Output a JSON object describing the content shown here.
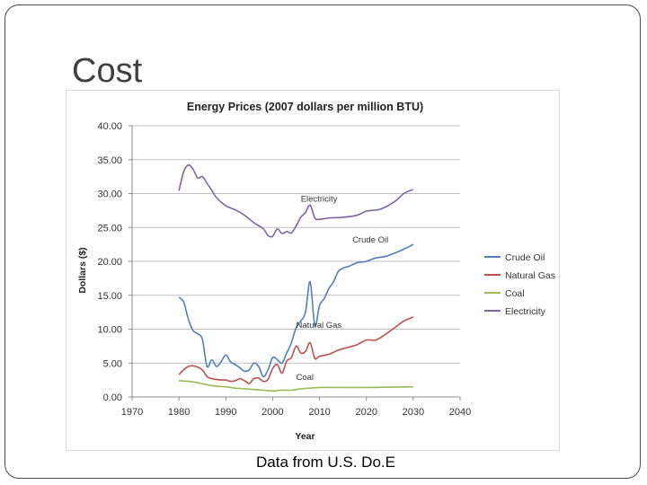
{
  "slide": {
    "title": "Cost",
    "caption": "Data from U.S. Do.E"
  },
  "chart_data": {
    "type": "line",
    "title": "Energy Prices (2007 dollars per  million BTU)",
    "xlabel": "Year",
    "ylabel": "Dollars ($)",
    "xlim": [
      1970,
      2040
    ],
    "ylim": [
      0,
      40
    ],
    "x_ticks": [
      "1970",
      "1980",
      "1990",
      "2000",
      "2010",
      "2020",
      "2030",
      "2040"
    ],
    "y_ticks": [
      "0.00",
      "5.00",
      "10.00",
      "15.00",
      "20.00",
      "25.00",
      "30.00",
      "35.00",
      "40.00"
    ],
    "grid": true,
    "legend_position": "right",
    "series": [
      {
        "name": "Crude Oil",
        "color": "#4f81bd",
        "annotation": "Crude Oil",
        "annotation_at": [
          2017,
          22.8
        ],
        "x": [
          1980,
          1981,
          1982,
          1983,
          1984,
          1985,
          1986,
          1987,
          1988,
          1989,
          1990,
          1991,
          1992,
          1993,
          1994,
          1995,
          1996,
          1997,
          1998,
          1999,
          2000,
          2001,
          2002,
          2003,
          2004,
          2005,
          2006,
          2007,
          2008,
          2009,
          2010,
          2011,
          2012,
          2013,
          2014,
          2015,
          2016,
          2017,
          2018,
          2019,
          2020,
          2022,
          2024,
          2026,
          2028,
          2030
        ],
        "y": [
          14.7,
          14,
          11.5,
          9.8,
          9.3,
          8.5,
          4.5,
          5.5,
          4.5,
          5.2,
          6.2,
          5.2,
          4.8,
          4.3,
          3.8,
          4,
          5,
          4.5,
          3,
          4,
          5.8,
          5.5,
          5,
          6.5,
          8,
          10.2,
          11.2,
          12.5,
          17,
          10.5,
          13.5,
          14.5,
          16,
          17,
          18.5,
          19,
          19.2,
          19.5,
          19.8,
          19.9,
          20,
          20.5,
          20.7,
          21.2,
          21.8,
          22.5
        ]
      },
      {
        "name": "Natural Gas",
        "color": "#c0504d",
        "annotation": "Natural Gas",
        "annotation_at": [
          2005,
          10.2
        ],
        "x": [
          1980,
          1981,
          1982,
          1983,
          1984,
          1985,
          1986,
          1987,
          1988,
          1989,
          1990,
          1991,
          1992,
          1993,
          1994,
          1995,
          1996,
          1997,
          1998,
          1999,
          2000,
          2001,
          2002,
          2003,
          2004,
          2005,
          2006,
          2007,
          2008,
          2009,
          2010,
          2012,
          2014,
          2016,
          2018,
          2020,
          2022,
          2024,
          2026,
          2028,
          2030
        ],
        "y": [
          3.3,
          4,
          4.5,
          4.6,
          4.4,
          4,
          3,
          2.7,
          2.6,
          2.5,
          2.5,
          2.3,
          2.4,
          2.7,
          2.4,
          2,
          2.7,
          2.8,
          2.3,
          2.6,
          4.2,
          4.8,
          3.5,
          5.3,
          5.8,
          7.5,
          6.5,
          6.7,
          8,
          5.7,
          6,
          6.3,
          6.9,
          7.3,
          7.7,
          8.4,
          8.4,
          9.2,
          10.2,
          11.2,
          11.8
        ]
      },
      {
        "name": "Coal",
        "color": "#9bbb59",
        "annotation": "Coal",
        "annotation_at": [
          2005,
          2.5
        ],
        "x": [
          1980,
          1982,
          1984,
          1986,
          1988,
          1990,
          1992,
          1994,
          1996,
          1998,
          2000,
          2002,
          2004,
          2006,
          2008,
          2010,
          2015,
          2020,
          2025,
          2030
        ],
        "y": [
          2.4,
          2.3,
          2.1,
          1.8,
          1.6,
          1.5,
          1.3,
          1.2,
          1.1,
          1,
          0.9,
          1,
          1,
          1.2,
          1.3,
          1.4,
          1.4,
          1.4,
          1.45,
          1.5
        ]
      },
      {
        "name": "Electricity",
        "color": "#8064a2",
        "annotation": "Electricity",
        "annotation_at": [
          2006,
          28.8
        ],
        "x": [
          1980,
          1981,
          1982,
          1983,
          1984,
          1985,
          1986,
          1987,
          1988,
          1990,
          1992,
          1994,
          1996,
          1998,
          1999,
          2000,
          2001,
          2002,
          2003,
          2004,
          2005,
          2006,
          2007,
          2008,
          2009,
          2010,
          2012,
          2015,
          2018,
          2020,
          2023,
          2026,
          2028,
          2030
        ],
        "y": [
          30.4,
          33.2,
          34.2,
          33.6,
          32.3,
          32.5,
          31.5,
          30.5,
          29.4,
          28.2,
          27.6,
          26.8,
          25.7,
          24.8,
          23.8,
          23.7,
          24.8,
          24.1,
          24.4,
          24.2,
          25.2,
          26.5,
          27.2,
          28.3,
          26.4,
          26.2,
          26.4,
          26.5,
          26.8,
          27.4,
          27.7,
          28.8,
          30,
          30.6
        ]
      }
    ]
  }
}
